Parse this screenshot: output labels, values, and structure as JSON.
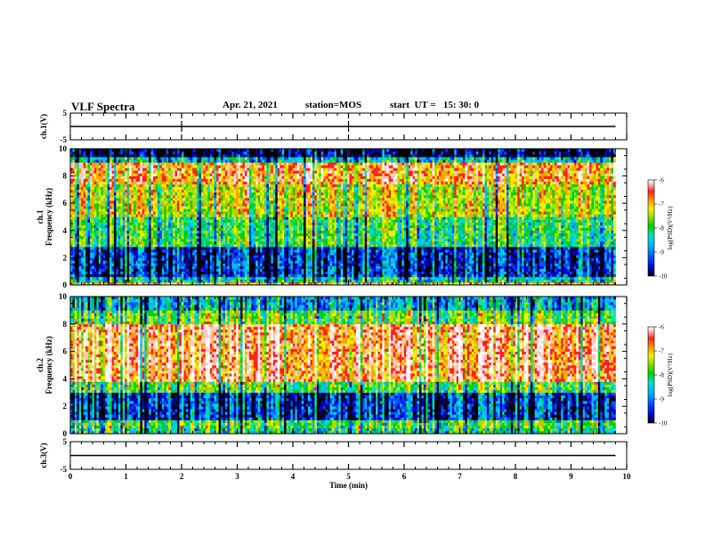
{
  "header": {
    "title": "VLF Spectra",
    "date": "Apr. 21, 2021",
    "station": "station=MOS",
    "start": "start  UT =   15: 30: 0"
  },
  "colors": {
    "scale": [
      "#000000",
      "#0000c8",
      "#0050ff",
      "#00b4ff",
      "#00e0c0",
      "#00d000",
      "#a0e000",
      "#f0f000",
      "#ffa000",
      "#ff2020",
      "#ffc8c8",
      "#ffffff"
    ]
  },
  "chart_data": [
    {
      "type": "line",
      "panel": "ch1-waveform",
      "ylabel": "ch.1(V)",
      "ylim": [
        -5,
        5
      ],
      "yticks": [
        5,
        -5
      ],
      "xlim": [
        0,
        10
      ],
      "baseline_value": 0,
      "spikes_at_min": [
        2.0,
        5.0
      ]
    },
    {
      "type": "heatmap",
      "panel": "ch1-spectrogram",
      "ylabel": "ch.1 Frequency (kHz)",
      "ylim": [
        0,
        10
      ],
      "yticks": [
        0,
        2,
        4,
        6,
        8,
        10
      ],
      "xlim": [
        0,
        10
      ],
      "colorbar": {
        "label": "log(PSD)(V²/Hz)",
        "ticks": [
          -6,
          -7,
          -8,
          -9,
          -10
        ],
        "range": [
          -10,
          -6
        ]
      },
      "data_end_min": 9.8,
      "bands": [
        {
          "f": [
            0,
            0.3
          ],
          "level": -7.2
        },
        {
          "f": [
            0.3,
            0.6
          ],
          "level": -8.5
        },
        {
          "f": [
            0.6,
            2.8
          ],
          "level": -9.3
        },
        {
          "f": [
            2.8,
            5.0
          ],
          "level": -8.2
        },
        {
          "f": [
            5.0,
            7.5
          ],
          "level": -7.6
        },
        {
          "f": [
            7.5,
            9.0
          ],
          "level": -7.0
        },
        {
          "f": [
            9.0,
            9.5
          ],
          "level": -8.6
        },
        {
          "f": [
            9.5,
            10
          ],
          "level": -9.7
        }
      ]
    },
    {
      "type": "heatmap",
      "panel": "ch2-spectrogram",
      "ylabel": "ch.2 Frequency (kHz)",
      "ylim": [
        0,
        10
      ],
      "yticks": [
        0,
        2,
        4,
        6,
        8,
        10
      ],
      "xlim": [
        0,
        10
      ],
      "colorbar": {
        "label": "log(PSD)(V²/Hz)",
        "ticks": [
          -6,
          -7,
          -8,
          -9,
          -10
        ],
        "range": [
          -10,
          -6
        ]
      },
      "data_end_min": 9.8,
      "bands": [
        {
          "f": [
            0,
            0.4
          ],
          "level": -8.3
        },
        {
          "f": [
            0.4,
            1.0
          ],
          "level": -8.0
        },
        {
          "f": [
            1.0,
            3.0
          ],
          "level": -9.2
        },
        {
          "f": [
            3.0,
            3.8
          ],
          "level": -8.0
        },
        {
          "f": [
            3.8,
            8.0
          ],
          "level": -6.7
        },
        {
          "f": [
            8.0,
            9.0
          ],
          "level": -7.9
        },
        {
          "f": [
            9.0,
            10
          ],
          "level": -8.7
        }
      ]
    },
    {
      "type": "line",
      "panel": "ch3-waveform",
      "ylabel": "ch.3(V)",
      "ylim": [
        -5,
        5
      ],
      "yticks": [
        5,
        -5
      ],
      "xlim": [
        0,
        10
      ],
      "baseline_value": 0,
      "xlabel": "Time (min)",
      "xticks": [
        0,
        1,
        2,
        3,
        4,
        5,
        6,
        7,
        8,
        9,
        10
      ]
    }
  ]
}
